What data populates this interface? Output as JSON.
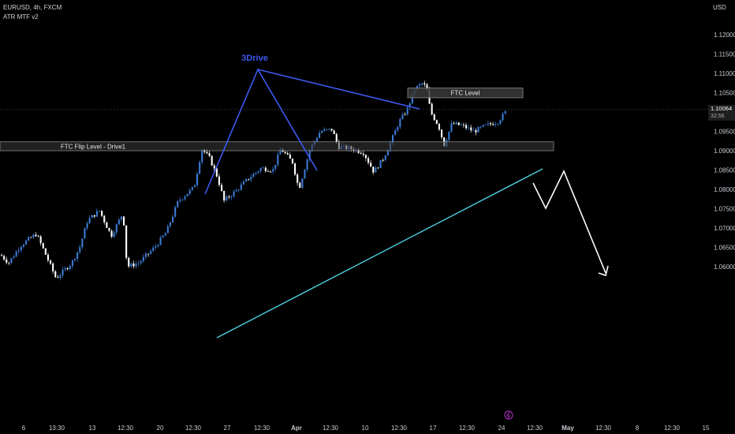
{
  "header": {
    "symbol_line": "EURUSD, 4h, FXCM",
    "indicator": "ATR MTF v2",
    "currency": "USD"
  },
  "price_tag": {
    "price": "1.10064",
    "countdown": "32:56"
  },
  "annotations": {
    "pattern_label": "3Drive",
    "ftc_level_label": "FTC Level",
    "ftc_flip_label": "FTC Flip Level - Drive1"
  },
  "colors": {
    "bull": "#3a7bd5",
    "bear": "#ffffff",
    "pattern": "#3d5af1",
    "trendline": "#4dd0e1",
    "zone_fill": "#3a3a3a",
    "zone_stroke": "#8a8a8a",
    "projection": "#ffffff",
    "background": "#000000"
  },
  "icons": {
    "flash": "flash-icon"
  },
  "chart_data": {
    "type": "candlestick",
    "symbol": "EURUSD",
    "timeframe": "4h",
    "y_ticks": [
      "1.12000",
      "1.11500",
      "1.11000",
      "1.10500",
      "1.10000",
      "1.09500",
      "1.09000",
      "1.08500",
      "1.08000",
      "1.07500",
      "1.07000",
      "1.06500",
      "1.06000"
    ],
    "ylim": [
      1.057,
      1.124
    ],
    "x_ticks": [
      "6",
      "13:30",
      "13",
      "12:30",
      "20",
      "12:30",
      "27",
      "12:30",
      "Apr",
      "12:30",
      "10",
      "12:30",
      "17",
      "12:30",
      "24",
      "12:30",
      "May",
      "12:30",
      "8",
      "12:30",
      "15"
    ],
    "last_price": 1.10064,
    "zones": [
      {
        "name": "FTC Level",
        "low": 1.1037,
        "high": 1.1062
      },
      {
        "name": "FTC Flip Level - Drive1",
        "low": 1.09,
        "high": 1.0923
      }
    ],
    "approx_path": [
      [
        0,
        1.063
      ],
      [
        10,
        1.061
      ],
      [
        25,
        1.0655
      ],
      [
        45,
        1.0685
      ],
      [
        55,
        1.064
      ],
      [
        70,
        1.057
      ],
      [
        90,
        1.061
      ],
      [
        100,
        1.065
      ],
      [
        110,
        1.072
      ],
      [
        125,
        1.0745
      ],
      [
        140,
        1.068
      ],
      [
        155,
        1.074
      ],
      [
        160,
        1.06
      ],
      [
        175,
        1.061
      ],
      [
        195,
        1.065
      ],
      [
        210,
        1.069
      ],
      [
        225,
        1.077
      ],
      [
        245,
        1.0805
      ],
      [
        255,
        1.0905
      ],
      [
        265,
        1.088
      ],
      [
        275,
        1.083
      ],
      [
        283,
        1.077
      ],
      [
        300,
        1.08
      ],
      [
        315,
        1.083
      ],
      [
        330,
        1.0855
      ],
      [
        345,
        1.085
      ],
      [
        355,
        1.0905
      ],
      [
        370,
        1.087
      ],
      [
        378,
        1.08
      ],
      [
        392,
        1.0905
      ],
      [
        405,
        1.095
      ],
      [
        420,
        1.0955
      ],
      [
        428,
        1.091
      ],
      [
        445,
        1.0905
      ],
      [
        460,
        1.0895
      ],
      [
        473,
        1.0845
      ],
      [
        485,
        1.088
      ],
      [
        495,
        1.0925
      ],
      [
        505,
        1.0975
      ],
      [
        515,
        1.1005
      ],
      [
        525,
        1.106
      ],
      [
        535,
        1.1075
      ],
      [
        540,
        1.106
      ],
      [
        545,
        1.1
      ],
      [
        555,
        1.0965
      ],
      [
        562,
        1.0915
      ],
      [
        572,
        1.097
      ],
      [
        585,
        1.0965
      ],
      [
        600,
        1.095
      ],
      [
        615,
        1.0965
      ],
      [
        630,
        1.0975
      ],
      [
        642,
        1.1005
      ]
    ]
  }
}
